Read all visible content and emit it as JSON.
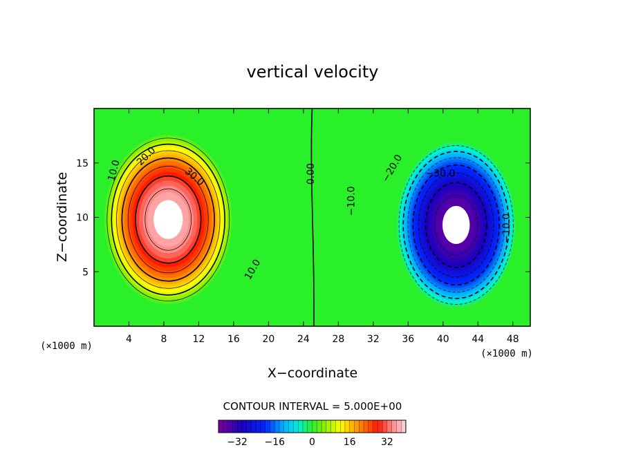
{
  "chart_data": {
    "type": "heatmap",
    "subtype": "filled-contour",
    "title": "vertical velocity",
    "xlabel": "X−coordinate",
    "ylabel": "Z−coordinate",
    "x_unit": "(×1000 m)",
    "x_unit_right": "(×1000 m)",
    "xlim": [
      0,
      50
    ],
    "ylim": [
      0,
      20
    ],
    "xticks": [
      4,
      8,
      12,
      16,
      20,
      24,
      28,
      32,
      36,
      40,
      44,
      48
    ],
    "xtick_labels": [
      "4",
      "8",
      "12",
      "16",
      "20",
      "24",
      "28",
      "32",
      "36",
      "40",
      "44",
      "48"
    ],
    "yticks": [
      5,
      10,
      15
    ],
    "ytick_labels": [
      "5",
      "10",
      "15"
    ],
    "contour_interval_text": "CONTOUR INTERVAL = 5.000E+00",
    "contour_interval": 5,
    "cells": [
      {
        "sign": 1,
        "center": [
          8.5,
          9.8
        ],
        "radius": [
          7.5,
          8.0
        ],
        "peak": 40
      },
      {
        "sign": -1,
        "center": [
          41.5,
          9.3
        ],
        "radius": [
          7.0,
          7.8
        ],
        "peak": 40
      }
    ],
    "contour_labels": [
      {
        "text": "10.0",
        "x": 2.3,
        "y": 14.3,
        "angle": -75
      },
      {
        "text": "20.0",
        "x": 6.0,
        "y": 15.6,
        "angle": -45
      },
      {
        "text": "30.0",
        "x": 11.5,
        "y": 13.7,
        "angle": 40
      },
      {
        "text": "10.0",
        "x": 18.2,
        "y": 5.2,
        "angle": -60
      },
      {
        "text": "0.00",
        "x": 24.9,
        "y": 14.0,
        "angle": -90
      },
      {
        "text": "−10.0",
        "x": 29.5,
        "y": 11.5,
        "angle": -90
      },
      {
        "text": "−20.0",
        "x": 34.2,
        "y": 14.5,
        "angle": -60
      },
      {
        "text": "−30.0",
        "x": 39.7,
        "y": 14.0,
        "angle": 0
      },
      {
        "text": "−10.0",
        "x": 47.3,
        "y": 9.0,
        "angle": -90
      }
    ],
    "colorbar": {
      "range": [
        -40,
        40
      ],
      "ticks": [
        -32,
        -16,
        0,
        16,
        32
      ],
      "tick_labels": [
        "−32",
        "−16",
        "0",
        "16",
        "32"
      ],
      "stops": [
        {
          "v": -40,
          "c": "#7a0098"
        },
        {
          "v": -30,
          "c": "#1a00c0"
        },
        {
          "v": -20,
          "c": "#0028ff"
        },
        {
          "v": -12,
          "c": "#00b4ff"
        },
        {
          "v": -6,
          "c": "#00f0d8"
        },
        {
          "v": 0,
          "c": "#2af02a"
        },
        {
          "v": 6,
          "c": "#96f000"
        },
        {
          "v": 12,
          "c": "#ffff00"
        },
        {
          "v": 20,
          "c": "#ff8c00"
        },
        {
          "v": 28,
          "c": "#ff1a00"
        },
        {
          "v": 34,
          "c": "#ff8a8a"
        },
        {
          "v": 40,
          "c": "#ffd8d8"
        }
      ]
    }
  }
}
